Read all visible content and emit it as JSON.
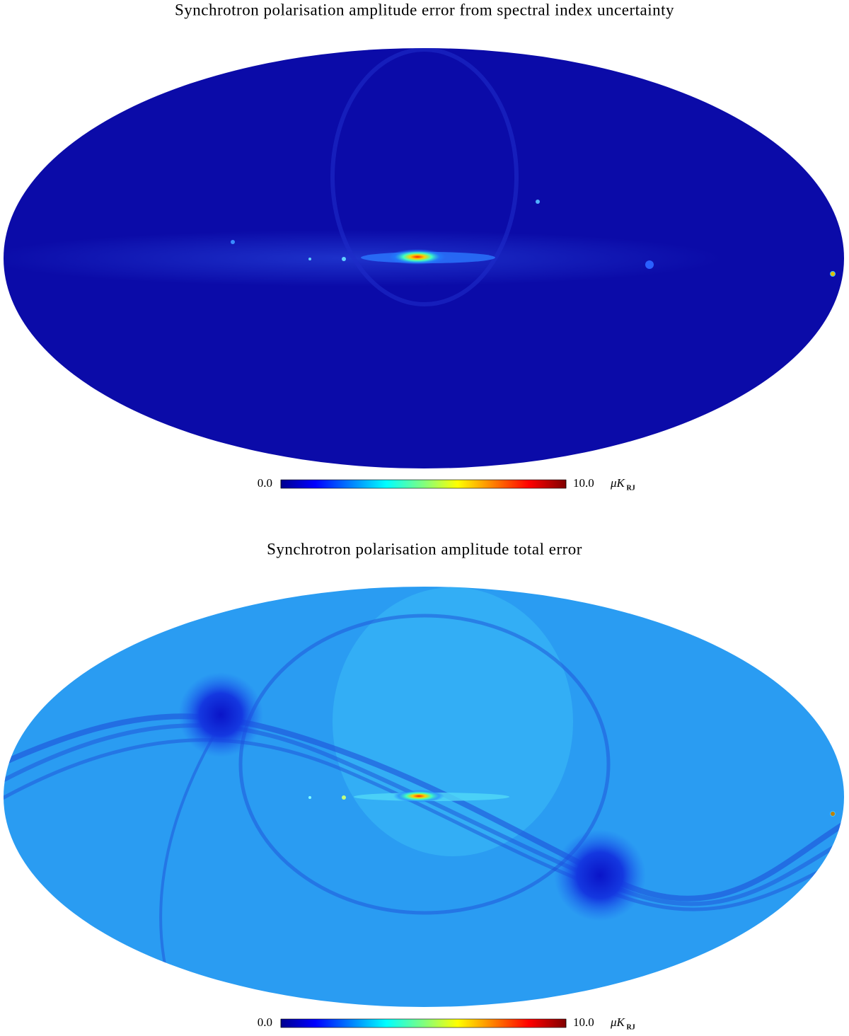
{
  "maps": [
    {
      "title": "Synchrotron polarisation amplitude error from spectral index uncertainty",
      "colorbar": {
        "min": {
          "value": 0,
          "label": "0.0"
        },
        "max": {
          "value": 10,
          "label": "10.0"
        },
        "unit": "μK",
        "unit_subscript": "RJ"
      }
    },
    {
      "title": "Synchrotron polarisation amplitude total error",
      "colorbar": {
        "min": {
          "value": 0,
          "label": "0.0"
        },
        "max": {
          "value": 10,
          "label": "10.0"
        },
        "unit": "μK",
        "unit_subscript": "RJ"
      }
    }
  ]
}
